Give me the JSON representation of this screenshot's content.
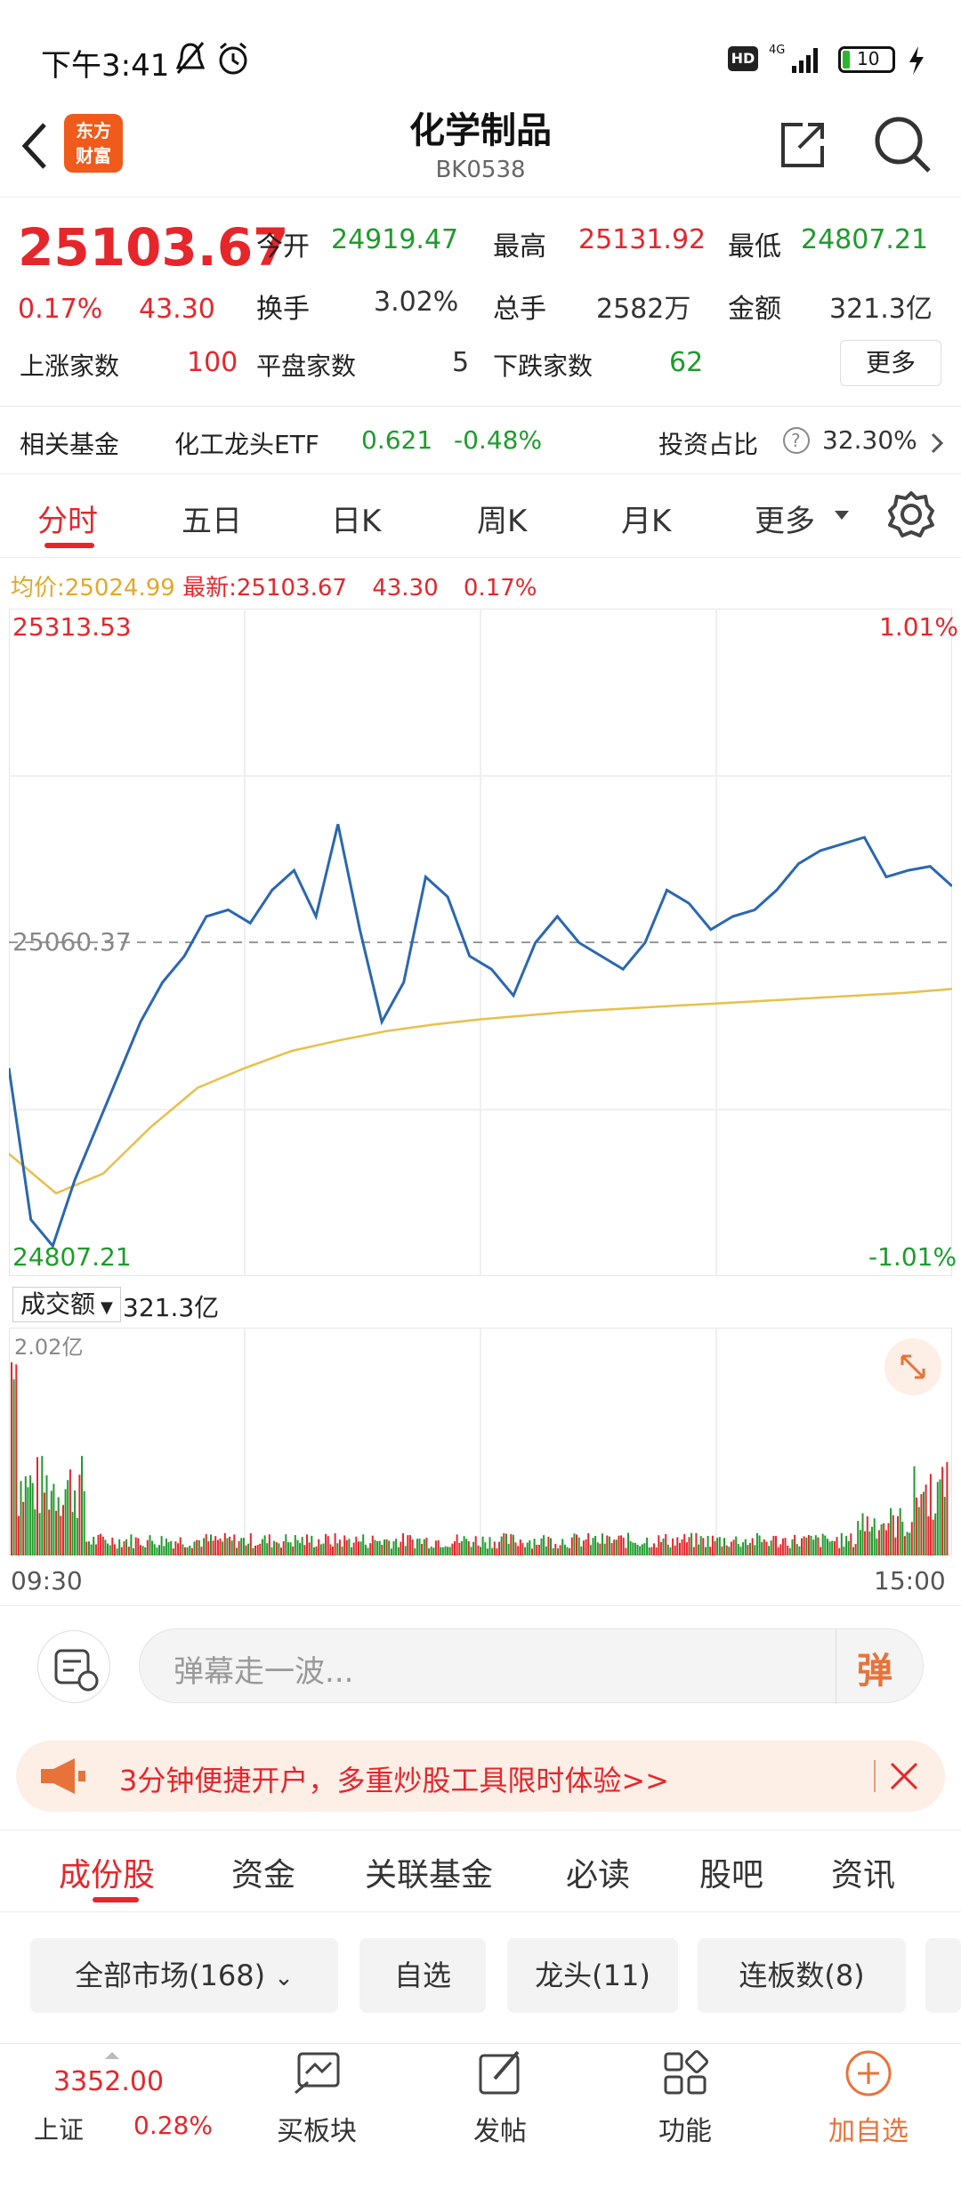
{
  "status_bar": {
    "time": "下午3:41",
    "battery": "10"
  },
  "nav": {
    "title": "化学制品",
    "code": "BK0538",
    "logo_line1": "东方",
    "logo_line2": "财富"
  },
  "quote": {
    "price": "25103.67",
    "change_pct": "0.17%",
    "change": "43.30",
    "open_label": "今开",
    "open": "24919.47",
    "high_label": "最高",
    "high": "25131.92",
    "low_label": "最低",
    "low": "24807.21",
    "turnover_label": "换手",
    "turnover": "3.02%",
    "volume_label": "总手",
    "volume": "2582万",
    "amount_label": "金额",
    "amount": "321.3亿",
    "up_label": "上涨家数",
    "up": "100",
    "flat_label": "平盘家数",
    "flat": "5",
    "down_label": "下跌家数",
    "down": "62",
    "more_label": "更多"
  },
  "fund": {
    "label": "相关基金",
    "name": "化工龙头ETF",
    "price": "0.621",
    "change": "-0.48%",
    "ratio_label": "投资占比",
    "ratio": "32.30%"
  },
  "chart_tabs": [
    "分时",
    "五日",
    "日K",
    "周K",
    "月K",
    "更多"
  ],
  "chart_legend": {
    "avg_label": "均价:",
    "avg": "25024.99",
    "latest_label": "最新:",
    "latest": "25103.67",
    "change": "43.30",
    "pct": "0.17%"
  },
  "chart_labels": {
    "top_price": "25313.53",
    "top_pct": "1.01%",
    "mid_price": "25060.37",
    "bottom_price": "24807.21",
    "bottom_pct": "-1.01%",
    "vol_selector": "成交额",
    "vol_total": "321.3亿",
    "vol_max": "2.02亿",
    "time_start": "09:30",
    "time_end": "15:00"
  },
  "chart_data": {
    "type": "line",
    "ylim": [
      24807.21,
      25313.53
    ],
    "reference": 25060.37,
    "series": [
      {
        "values": [
          24965,
          24850,
          24830,
          24880,
          24920,
          24960,
          25000,
          25030,
          25050,
          25080,
          25085,
          25075,
          25100,
          25115,
          25080,
          25150,
          25070,
          25000,
          25030,
          25110,
          25095,
          25050,
          25040,
          25020,
          25060,
          25080,
          25060,
          25050,
          25040,
          25060,
          25100,
          25090,
          25070,
          25080,
          25085,
          25100,
          25120,
          25130,
          25135,
          25140,
          25110,
          25115,
          25118,
          25103
        ]
      },
      {
        "values": [
          24900,
          24870,
          24885,
          24920,
          24950,
          24965,
          24978,
          24986,
          24993,
          24998,
          25002,
          25005,
          25008,
          25010,
          25012,
          25014,
          25016,
          25018,
          25020,
          25022,
          25025
        ]
      }
    ],
    "volume_bars": 400
  },
  "danmu": {
    "placeholder": "弹幕走一波...",
    "button": "弹"
  },
  "banner": {
    "text": "3分钟便捷开户，多重炒股工具限时体验>>"
  },
  "sub_tabs": [
    "成份股",
    "资金",
    "关联基金",
    "必读",
    "股吧",
    "资讯"
  ],
  "chips": [
    "全部市场(168)",
    "自选",
    "龙头(11)",
    "连板数(8)"
  ],
  "bottom_nav": {
    "index_price": "3352.00",
    "index_name": "上证",
    "index_pct": "0.28%",
    "items": [
      "买板块",
      "发帖",
      "功能",
      "加自选"
    ]
  }
}
